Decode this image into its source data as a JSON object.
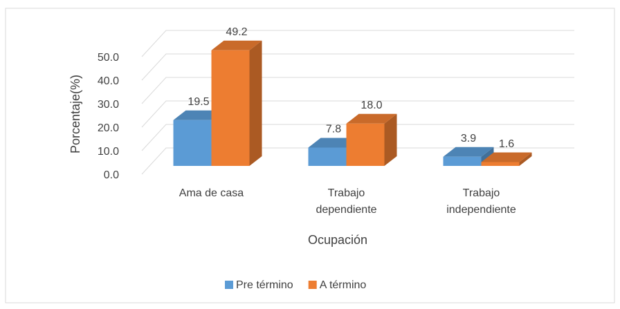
{
  "chart_data": {
    "type": "bar3d",
    "categories": [
      "Ama de casa",
      "Trabajo dependiente",
      "Trabajo independiente"
    ],
    "series": [
      {
        "name": "Pre término",
        "color": "#5b9bd5",
        "values": [
          19.5,
          7.8,
          3.9
        ],
        "value_labels": [
          "19.5",
          "7.8",
          "3.9"
        ]
      },
      {
        "name": "A término",
        "color": "#ed7d31",
        "values": [
          49.2,
          18.0,
          1.6
        ],
        "value_labels": [
          "49.2",
          "18.0",
          "1.6"
        ]
      }
    ],
    "ylabel": "Porcentaje(%)",
    "xlabel": "Ocupación",
    "ylim": [
      0,
      50
    ],
    "yticks": [
      {
        "value": 0,
        "label": "0.0"
      },
      {
        "value": 10,
        "label": "10.0"
      },
      {
        "value": 20,
        "label": "20.0"
      },
      {
        "value": 30,
        "label": "30.0"
      },
      {
        "value": 40,
        "label": "40.0"
      },
      {
        "value": 50,
        "label": "50.0"
      }
    ],
    "grid": true,
    "legend": "bottom"
  }
}
